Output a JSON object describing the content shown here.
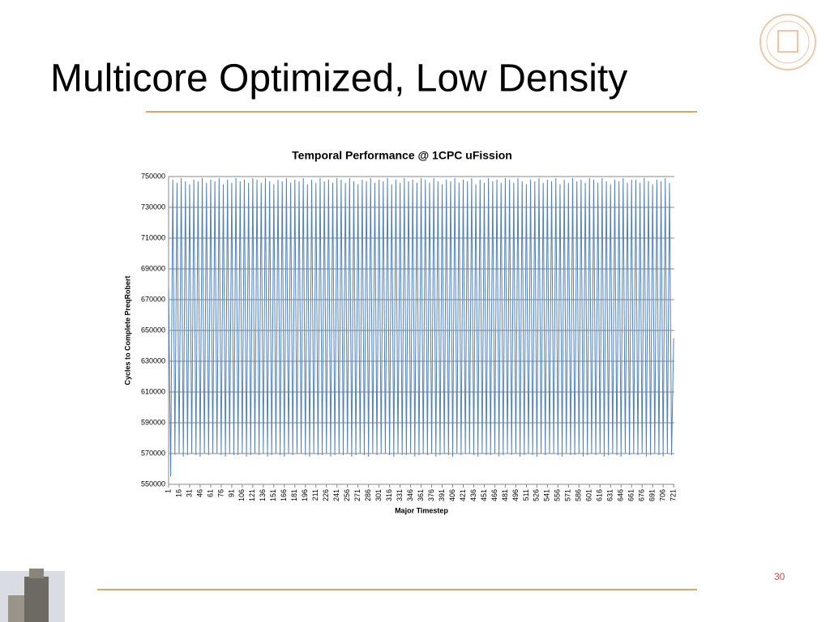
{
  "slide_title": "Multicore Optimized, Low Density",
  "page_number": "30",
  "chart_data": {
    "type": "line",
    "title": "Temporal Performance @ 1CPC uFission",
    "x_label": "Major Timestep",
    "y_label": "Cycles to Complete PreqRobert",
    "xlim": [
      1,
      722
    ],
    "ylim": [
      550000,
      750000
    ],
    "yticks": [
      550000,
      570000,
      590000,
      610000,
      630000,
      650000,
      670000,
      690000,
      710000,
      730000,
      750000
    ],
    "xticks": [
      1,
      16,
      31,
      46,
      61,
      76,
      91,
      106,
      121,
      136,
      151,
      166,
      181,
      196,
      211,
      226,
      241,
      256,
      271,
      286,
      301,
      316,
      331,
      346,
      361,
      376,
      391,
      406,
      421,
      436,
      451,
      466,
      481,
      496,
      511,
      526,
      541,
      556,
      571,
      586,
      601,
      616,
      631,
      646,
      661,
      676,
      691,
      706,
      721
    ],
    "grid": true,
    "x": [
      1,
      4,
      7,
      10,
      13,
      16,
      19,
      22,
      25,
      28,
      31,
      34,
      37,
      40,
      43,
      46,
      49,
      52,
      55,
      58,
      61,
      64,
      67,
      70,
      73,
      76,
      79,
      82,
      85,
      88,
      91,
      94,
      97,
      100,
      103,
      106,
      109,
      112,
      115,
      118,
      121,
      124,
      127,
      130,
      133,
      136,
      139,
      142,
      145,
      148,
      151,
      154,
      157,
      160,
      163,
      166,
      169,
      172,
      175,
      178,
      181,
      184,
      187,
      190,
      193,
      196,
      199,
      202,
      205,
      208,
      211,
      214,
      217,
      220,
      223,
      226,
      229,
      232,
      235,
      238,
      241,
      244,
      247,
      250,
      253,
      256,
      259,
      262,
      265,
      268,
      271,
      274,
      277,
      280,
      283,
      286,
      289,
      292,
      295,
      298,
      301,
      304,
      307,
      310,
      313,
      316,
      319,
      322,
      325,
      328,
      331,
      334,
      337,
      340,
      343,
      346,
      349,
      352,
      355,
      358,
      361,
      364,
      367,
      370,
      373,
      376,
      379,
      382,
      385,
      388,
      391,
      394,
      397,
      400,
      403,
      406,
      409,
      412,
      415,
      418,
      421,
      424,
      427,
      430,
      433,
      436,
      439,
      442,
      445,
      448,
      451,
      454,
      457,
      460,
      463,
      466,
      469,
      472,
      475,
      478,
      481,
      484,
      487,
      490,
      493,
      496,
      499,
      502,
      505,
      508,
      511,
      514,
      517,
      520,
      523,
      526,
      529,
      532,
      535,
      538,
      541,
      544,
      547,
      550,
      553,
      556,
      559,
      562,
      565,
      568,
      571,
      574,
      577,
      580,
      583,
      586,
      589,
      592,
      595,
      598,
      601,
      604,
      607,
      610,
      613,
      616,
      619,
      622,
      625,
      628,
      631,
      634,
      637,
      640,
      643,
      646,
      649,
      652,
      655,
      658,
      661,
      664,
      667,
      670,
      673,
      676,
      679,
      682,
      685,
      688,
      691,
      694,
      697,
      700,
      703,
      706,
      709,
      712,
      715,
      718,
      721
    ],
    "series": [
      {
        "name": "Cycles",
        "color": "#4f81bd",
        "values": [
          678000,
          555000,
          748000,
          569000,
          746000,
          570000,
          749000,
          568000,
          747000,
          569000,
          745000,
          570000,
          748000,
          569000,
          747000,
          568000,
          749000,
          570000,
          746000,
          569000,
          748000,
          570000,
          747000,
          570000,
          749000,
          569000,
          745000,
          568000,
          748000,
          570000,
          746000,
          569000,
          749000,
          569000,
          747000,
          570000,
          748000,
          568000,
          746000,
          569000,
          749000,
          570000,
          748000,
          569000,
          746000,
          570000,
          749000,
          568000,
          747000,
          569000,
          745000,
          570000,
          748000,
          569000,
          747000,
          568000,
          749000,
          570000,
          746000,
          569000,
          748000,
          570000,
          747000,
          570000,
          749000,
          569000,
          745000,
          568000,
          748000,
          570000,
          746000,
          569000,
          749000,
          569000,
          747000,
          570000,
          748000,
          568000,
          746000,
          569000,
          749000,
          570000,
          748000,
          569000,
          746000,
          570000,
          749000,
          568000,
          747000,
          569000,
          745000,
          570000,
          748000,
          569000,
          747000,
          568000,
          749000,
          570000,
          746000,
          569000,
          748000,
          570000,
          747000,
          570000,
          749000,
          569000,
          745000,
          568000,
          748000,
          570000,
          746000,
          569000,
          749000,
          569000,
          747000,
          570000,
          748000,
          568000,
          746000,
          569000,
          749000,
          570000,
          748000,
          569000,
          746000,
          570000,
          749000,
          568000,
          747000,
          569000,
          745000,
          570000,
          748000,
          569000,
          747000,
          568000,
          749000,
          570000,
          746000,
          569000,
          748000,
          570000,
          747000,
          570000,
          749000,
          569000,
          745000,
          568000,
          748000,
          570000,
          746000,
          569000,
          749000,
          569000,
          747000,
          570000,
          748000,
          568000,
          746000,
          569000,
          749000,
          570000,
          748000,
          569000,
          746000,
          570000,
          749000,
          568000,
          747000,
          569000,
          745000,
          570000,
          748000,
          569000,
          747000,
          568000,
          749000,
          570000,
          746000,
          569000,
          748000,
          570000,
          747000,
          570000,
          749000,
          569000,
          745000,
          568000,
          748000,
          570000,
          746000,
          569000,
          749000,
          569000,
          747000,
          570000,
          748000,
          568000,
          746000,
          569000,
          749000,
          570000,
          748000,
          569000,
          746000,
          570000,
          749000,
          568000,
          747000,
          569000,
          745000,
          570000,
          748000,
          569000,
          747000,
          568000,
          749000,
          570000,
          746000,
          569000,
          748000,
          570000,
          748000,
          569000,
          746000,
          570000,
          749000,
          568000,
          747000,
          569000,
          745000,
          570000,
          748000,
          569000,
          747000,
          568000,
          749000,
          570000,
          746000,
          569000,
          645000
        ]
      }
    ]
  }
}
